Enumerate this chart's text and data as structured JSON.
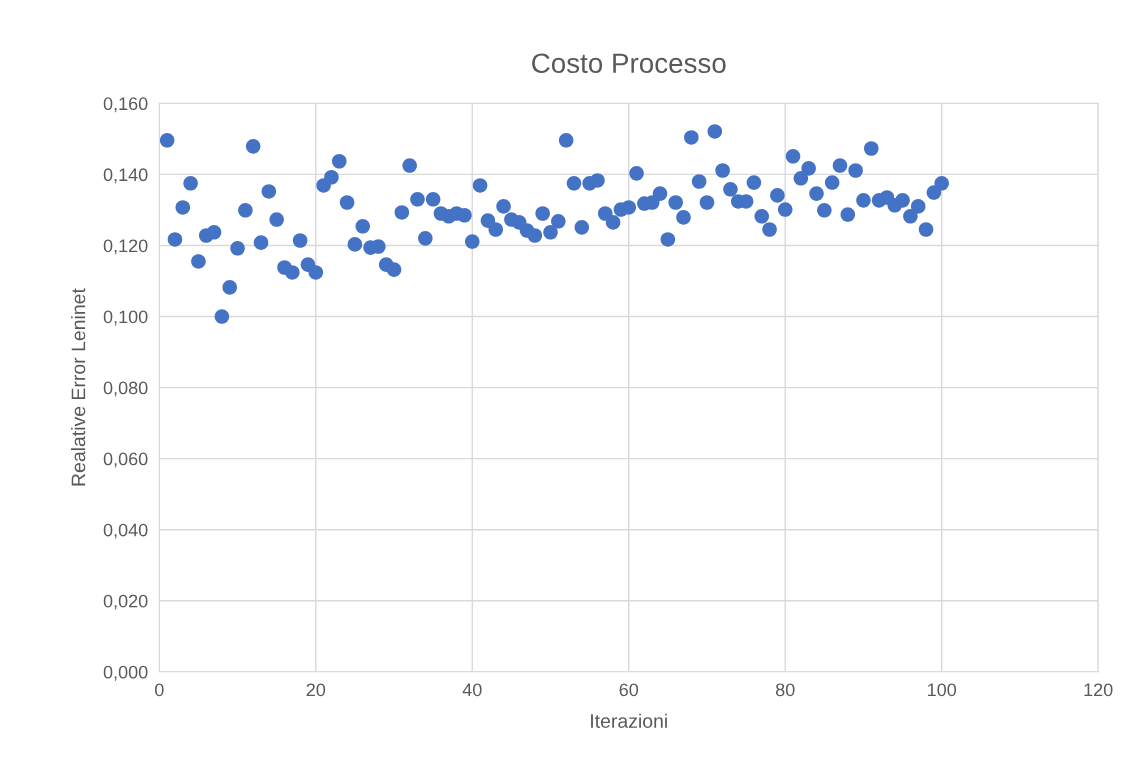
{
  "chart_data": {
    "type": "scatter",
    "title": "Costo Processo",
    "xlabel": "Iterazioni",
    "ylabel": "Realative Error Leninet",
    "x": [
      1,
      2,
      3,
      4,
      5,
      6,
      7,
      8,
      9,
      10,
      11,
      12,
      13,
      14,
      15,
      16,
      17,
      18,
      19,
      20,
      21,
      22,
      23,
      24,
      25,
      26,
      27,
      28,
      29,
      30,
      31,
      32,
      33,
      34,
      35,
      36,
      37,
      38,
      39,
      40,
      41,
      42,
      43,
      44,
      45,
      46,
      47,
      48,
      49,
      50,
      51,
      52,
      53,
      54,
      55,
      56,
      57,
      58,
      59,
      60,
      61,
      62,
      63,
      64,
      65,
      66,
      67,
      68,
      69,
      70,
      71,
      72,
      73,
      74,
      75,
      76,
      77,
      78,
      79,
      80,
      81,
      82,
      83,
      84,
      85,
      86,
      87,
      88,
      89,
      90,
      91,
      92,
      93,
      94,
      95,
      96,
      97,
      98,
      99,
      100
    ],
    "series": [
      {
        "color": "#4472c4",
        "values": [
          0.1496,
          0.1217,
          0.1307,
          0.1375,
          0.1155,
          0.1228,
          0.1237,
          0.1,
          0.1082,
          0.1192,
          0.1299,
          0.1479,
          0.1208,
          0.1352,
          0.1273,
          0.1138,
          0.1124,
          0.1214,
          0.1146,
          0.1124,
          0.1369,
          0.1392,
          0.1437,
          0.1321,
          0.1203,
          0.1254,
          0.1194,
          0.1197,
          0.1146,
          0.1132,
          0.1293,
          0.1425,
          0.133,
          0.122,
          0.133,
          0.129,
          0.1282,
          0.129,
          0.1285,
          0.1211,
          0.1369,
          0.127,
          0.1245,
          0.131,
          0.1273,
          0.1265,
          0.1242,
          0.1228,
          0.129,
          0.1237,
          0.1268,
          0.1496,
          0.1375,
          0.1251,
          0.1375,
          0.1383,
          0.129,
          0.1265,
          0.1301,
          0.1307,
          0.1403,
          0.1318,
          0.1321,
          0.1346,
          0.1217,
          0.1321,
          0.1279,
          0.1504,
          0.138,
          0.1321,
          0.1521,
          0.1411,
          0.1358,
          0.1324,
          0.1324,
          0.1377,
          0.1282,
          0.1245,
          0.1341,
          0.1301,
          0.1451,
          0.1389,
          0.1417,
          0.1346,
          0.1299,
          0.1377,
          0.1425,
          0.1287,
          0.1411,
          0.1327,
          0.1473,
          0.1327,
          0.1335,
          0.1313,
          0.1327,
          0.1282,
          0.131,
          0.1245,
          0.1349,
          0.1375
        ]
      }
    ],
    "xlim": [
      0,
      120
    ],
    "xticks": [
      0,
      20,
      40,
      60,
      80,
      100,
      120
    ],
    "ylim": [
      0,
      0.16
    ],
    "yticks": [
      {
        "value": 0,
        "label": "0,000"
      },
      {
        "value": 0.02,
        "label": "0,020"
      },
      {
        "value": 0.04,
        "label": "0,040"
      },
      {
        "value": 0.06,
        "label": "0,060"
      },
      {
        "value": 0.08,
        "label": "0,080"
      },
      {
        "value": 0.1,
        "label": "0,100"
      },
      {
        "value": 0.12,
        "label": "0,120"
      },
      {
        "value": 0.14,
        "label": "0,140"
      },
      {
        "value": 0.16,
        "label": "0,160"
      }
    ],
    "grid": true,
    "marker": "circle"
  }
}
